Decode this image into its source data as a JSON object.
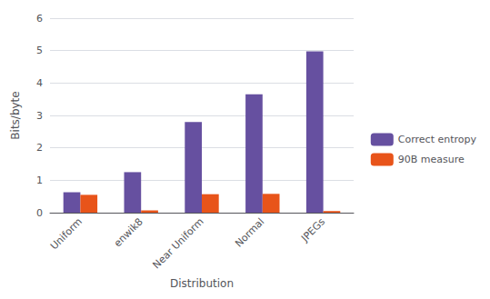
{
  "chart_data": {
    "type": "bar",
    "categories": [
      "Uniform",
      "enwik8",
      "Near Uniform",
      "Normal",
      "JPEGs"
    ],
    "series": [
      {
        "name": "Correct entropy",
        "color": "#6650a0",
        "values": [
          0.63,
          1.25,
          2.8,
          3.65,
          4.98
        ]
      },
      {
        "name": "90B measure",
        "color": "#e8541a",
        "values": [
          0.55,
          0.07,
          0.57,
          0.58,
          0.05
        ]
      }
    ],
    "xlabel": "Distribution",
    "ylabel": "Bits/byte",
    "ylim": [
      0,
      6
    ],
    "yticks": [
      0,
      1,
      2,
      3,
      4,
      5,
      6
    ],
    "grid": true,
    "legend": "right"
  }
}
